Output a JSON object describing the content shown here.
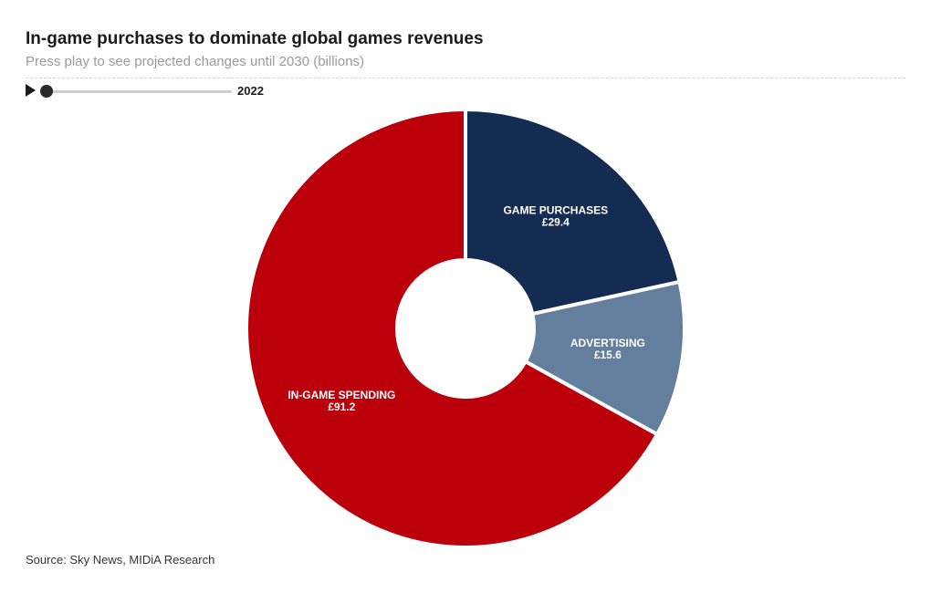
{
  "header": {
    "title": "In-game purchases to dominate global games revenues",
    "subtitle": "Press play to see projected changes until 2030 (billions)"
  },
  "controls": {
    "play_icon": "play-icon",
    "year": "2022",
    "slider_position": 0
  },
  "chart_data": {
    "type": "pie",
    "donut": true,
    "start_angle_deg": 0,
    "slices": [
      {
        "label": "GAME PURCHASES",
        "value": 29.4,
        "value_label": "£29.4",
        "color": "#142b52"
      },
      {
        "label": "ADVERTISING",
        "value": 15.6,
        "value_label": "£15.6",
        "color": "#637f9d"
      },
      {
        "label": "IN-GAME SPENDING",
        "value": 91.2,
        "value_label": "£91.2",
        "color": "#bb000b"
      }
    ]
  },
  "footer": {
    "source": "Source: Sky News, MIDiA Research"
  }
}
